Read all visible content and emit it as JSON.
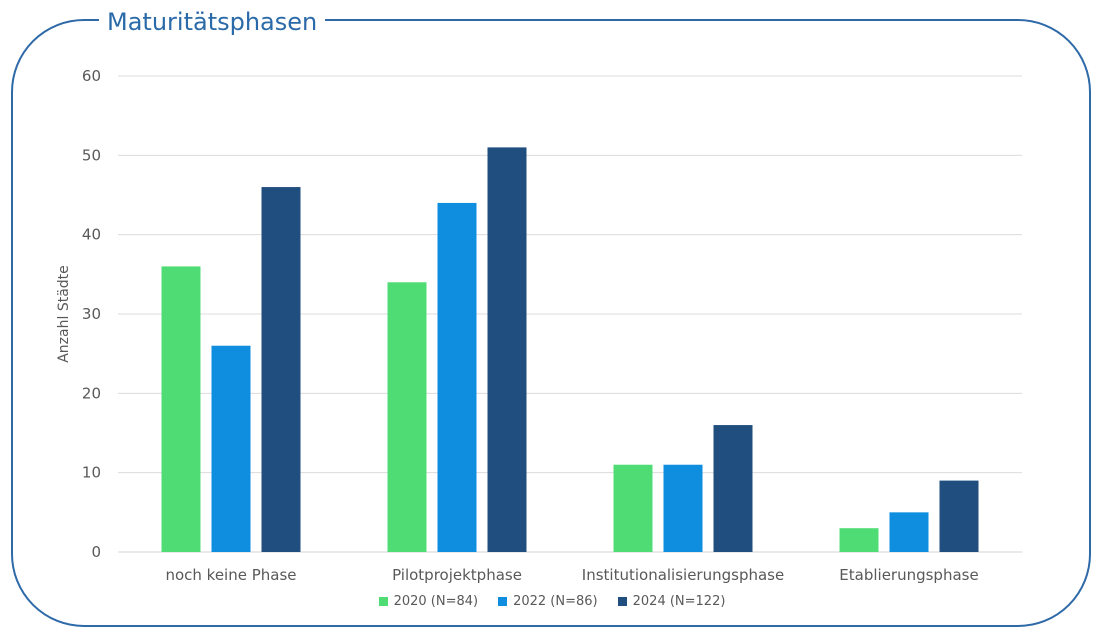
{
  "title": "Maturitätsphasen",
  "colors": {
    "frame": "#2f6aa8",
    "title": "#2a6aa8",
    "grid": "#dcdcdc",
    "axis_text": "#595959",
    "series": [
      "#4fdc74",
      "#0f8ee0",
      "#1f4e7f"
    ]
  },
  "chart_data": {
    "type": "bar",
    "title": "Maturitätsphasen",
    "xlabel": "",
    "ylabel": "Anzahl Städte",
    "ylim": [
      0,
      60
    ],
    "yticks": [
      0,
      10,
      20,
      30,
      40,
      50,
      60
    ],
    "categories": [
      "noch keine Phase",
      "Pilotprojektphase",
      "Institutionalisierungsphase",
      "Etablierungsphase"
    ],
    "series": [
      {
        "name": "2020 (N=84)",
        "values": [
          36,
          34,
          11,
          3
        ]
      },
      {
        "name": "2022 (N=86)",
        "values": [
          26,
          44,
          11,
          5
        ]
      },
      {
        "name": "2024 (N=122)",
        "values": [
          46,
          51,
          16,
          9
        ]
      }
    ],
    "grid": true,
    "legend_position": "bottom"
  }
}
